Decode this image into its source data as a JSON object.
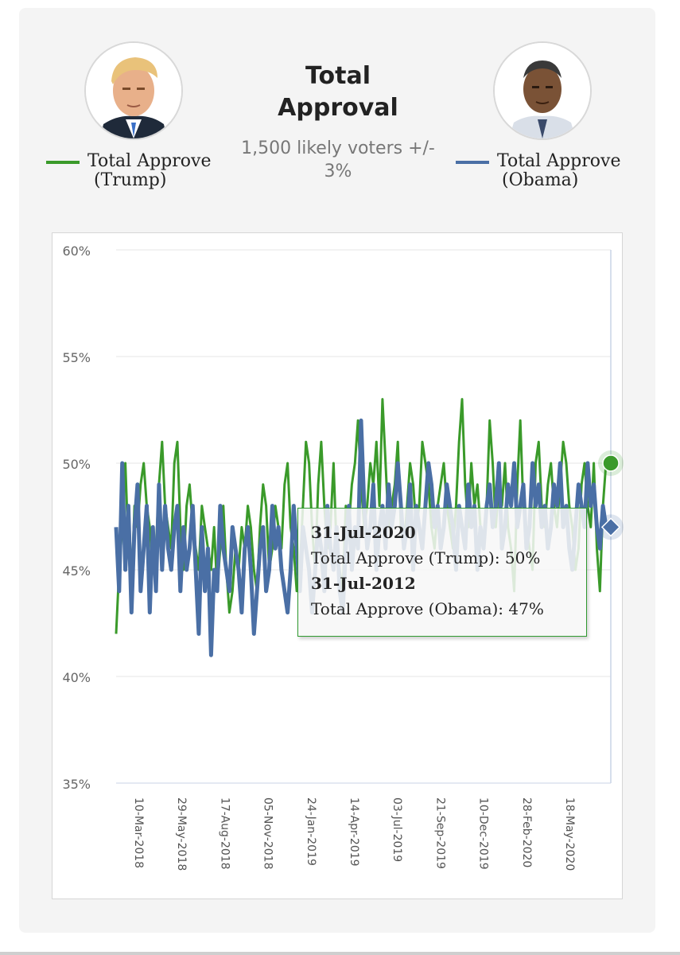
{
  "header": {
    "title": "Total Approval",
    "subtitle": "1,500 likely voters +/- 3%"
  },
  "legend": [
    {
      "line1": "Total Approve",
      "line2": "(Trump)",
      "color": "#3a9a2a"
    },
    {
      "line1": "Total Approve",
      "line2": "(Obama)",
      "color": "#4a6fa5"
    }
  ],
  "tooltip": {
    "date1": "31-Jul-2020",
    "text1": "Total Approve (Trump): 50%",
    "date2": "31-Jul-2012",
    "text2": "Total Approve (Obama): 47%"
  },
  "chart_data": {
    "type": "line",
    "ylim": [
      35,
      60
    ],
    "y_ticks": [
      "60%",
      "55%",
      "50%",
      "45%",
      "40%",
      "35%"
    ],
    "y_tick_values": [
      60,
      55,
      50,
      45,
      40,
      35
    ],
    "x_tick_labels": [
      "10-Mar-2018",
      "29-May-2018",
      "17-Aug-2018",
      "05-Nov-2018",
      "24-Jan-2019",
      "14-Apr-2019",
      "03-Jul-2019",
      "21-Sep-2019",
      "10-Dec-2019",
      "28-Feb-2020",
      "18-May-2020"
    ],
    "grid": true,
    "series": [
      {
        "name": "Total Approve (Trump)",
        "color": "#3a9a2a",
        "values": [
          42,
          45,
          47,
          50,
          46,
          44,
          48,
          47,
          49,
          50,
          48,
          47,
          45,
          46,
          49,
          51,
          48,
          47,
          46,
          50,
          51,
          47,
          45,
          48,
          49,
          47,
          46,
          45,
          48,
          47,
          46,
          45,
          47,
          44,
          46,
          48,
          45,
          43,
          44,
          46,
          45,
          47,
          46,
          48,
          47,
          45,
          44,
          47,
          49,
          48,
          45,
          46,
          48,
          47,
          46,
          49,
          50,
          47,
          46,
          44,
          45,
          48,
          51,
          50,
          47,
          45,
          49,
          51,
          48,
          46,
          47,
          50,
          46,
          45,
          44,
          48,
          47,
          49,
          50,
          52,
          49,
          47,
          48,
          50,
          49,
          51,
          48,
          53,
          50,
          47,
          48,
          49,
          51,
          47,
          46,
          48,
          50,
          49,
          47,
          48,
          51,
          50,
          49,
          47,
          46,
          48,
          49,
          50,
          48,
          47,
          46,
          48,
          51,
          53,
          49,
          47,
          50,
          48,
          49,
          47,
          46,
          48,
          52,
          50,
          47,
          49,
          48,
          50,
          47,
          46,
          44,
          49,
          52,
          48,
          47,
          46,
          45,
          50,
          51,
          48,
          47,
          49,
          50,
          48,
          47,
          49,
          51,
          50,
          48,
          47,
          45,
          46,
          49,
          50,
          48,
          47,
          50,
          46,
          44,
          48,
          50
        ]
      },
      {
        "name": "Total Approve (Obama)",
        "color": "#4a6fa5",
        "values": [
          47,
          44,
          50,
          45,
          48,
          43,
          47,
          49,
          44,
          46,
          48,
          43,
          47,
          44,
          49,
          45,
          48,
          46,
          45,
          47,
          48,
          44,
          47,
          45,
          46,
          48,
          45,
          42,
          47,
          44,
          46,
          41,
          45,
          44,
          48,
          46,
          45,
          44,
          47,
          46,
          45,
          43,
          46,
          47,
          45,
          42,
          44,
          46,
          47,
          44,
          45,
          48,
          46,
          47,
          45,
          44,
          43,
          45,
          48,
          46,
          44,
          47,
          46,
          45,
          43,
          45,
          47,
          46,
          44,
          48,
          46,
          45,
          47,
          44,
          43,
          46,
          48,
          45,
          47,
          46,
          52,
          48,
          46,
          47,
          49,
          45,
          47,
          48,
          46,
          49,
          47,
          48,
          50,
          48,
          46,
          47,
          49,
          45,
          48,
          47,
          46,
          48,
          50,
          49,
          47,
          48,
          46,
          47,
          49,
          48,
          47,
          45,
          48,
          47,
          46,
          49,
          47,
          48,
          45,
          47,
          46,
          48,
          49,
          47,
          48,
          50,
          46,
          47,
          49,
          48,
          50,
          47,
          48,
          49,
          46,
          47,
          50,
          48,
          49,
          47,
          48,
          46,
          47,
          49,
          48,
          50,
          47,
          48,
          46,
          45,
          47,
          49,
          48,
          47,
          50,
          48,
          49,
          47,
          46,
          48,
          47
        ]
      }
    ],
    "highlight": {
      "trump": 50,
      "obama": 47
    }
  }
}
